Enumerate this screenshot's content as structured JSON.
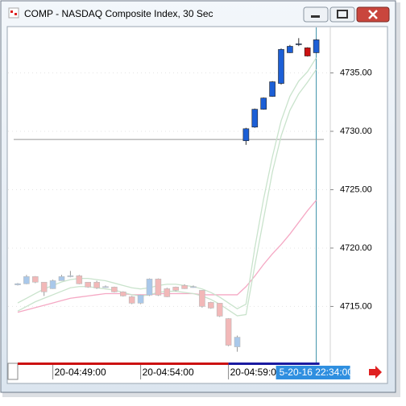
{
  "window": {
    "title": "COMP - NASDAQ Composite Index, 30 Sec"
  },
  "chart_data": {
    "type": "candlestick",
    "categories": [
      null,
      null,
      null,
      null,
      "20-04:49:00",
      null,
      null,
      null,
      null,
      null,
      null,
      null,
      null,
      null,
      "20-04:54:00",
      null,
      null,
      null,
      null,
      null,
      null,
      null,
      null,
      null,
      "20-04:59:00",
      null,
      null,
      null,
      null,
      null,
      null,
      null,
      null,
      null,
      "5-20-16 22:34:00"
    ],
    "open": [
      4716.85,
      4716.94,
      4717.56,
      4717.08,
      4716.52,
      4717.21,
      4717.55,
      4717.63,
      4717.08,
      4717.08,
      4716.62,
      4716.66,
      4716.25,
      4715.83,
      4715.28,
      4715.97,
      4717.35,
      4716.52,
      4716.66,
      4716.8,
      4716.62,
      4716.38,
      4715.35,
      4715.28,
      4713.96,
      4711.54,
      4729.19,
      4730.36,
      4731.89,
      4732.99,
      4734.1,
      4736.73,
      4737.45,
      4737.15,
      4736.73
    ],
    "high": [
      4717.0,
      4717.7,
      4717.6,
      4717.1,
      4717.3,
      4717.7,
      4718.04,
      4717.7,
      4717.1,
      4717.2,
      4716.8,
      4716.7,
      4716.3,
      4715.9,
      4716.0,
      4717.4,
      4717.4,
      4716.6,
      4716.7,
      4716.9,
      4716.8,
      4716.4,
      4715.4,
      4715.3,
      4714.0,
      4712.5,
      4730.3,
      4731.95,
      4732.9,
      4734.3,
      4737.1,
      4737.4,
      4737.98,
      4737.2,
      4737.9
    ],
    "low": [
      4716.8,
      4716.9,
      4717.0,
      4715.9,
      4716.5,
      4717.2,
      4717.5,
      4716.9,
      4716.6,
      4716.5,
      4716.6,
      4716.2,
      4715.85,
      4715.2,
      4715.2,
      4715.9,
      4715.9,
      4715.8,
      4716.3,
      4716.5,
      4716.6,
      4714.9,
      4714.8,
      4714.1,
      4711.6,
      4711.12,
      4728.84,
      4730.3,
      4731.85,
      4732.95,
      4734.0,
      4736.7,
      4737.3,
      4736.4,
      4736.7
    ],
    "close": [
      4716.95,
      4717.56,
      4717.08,
      4716.25,
      4717.21,
      4717.56,
      4717.63,
      4716.94,
      4716.66,
      4716.59,
      4716.7,
      4716.25,
      4715.9,
      4715.28,
      4715.97,
      4717.35,
      4715.97,
      4715.83,
      4716.38,
      4716.52,
      4716.7,
      4715.0,
      4714.86,
      4714.17,
      4711.68,
      4712.37,
      4730.22,
      4731.89,
      4732.85,
      4734.24,
      4737.01,
      4737.28,
      4737.49,
      4736.45,
      4737.84
    ],
    "candle_colors": [
      "#a9c8ea",
      "#a9c8ea",
      "#f2b8b8",
      "#f2b8b8",
      "#a9c8ea",
      "#a9c8ea",
      "#a9c8ea",
      "#f2b8b8",
      "#f2b8b8",
      "#f2b8b8",
      "#a9c8ea",
      "#f2b8b8",
      "#f2b8b8",
      "#f2b8b8",
      "#a9c8ea",
      "#a9c8ea",
      "#f2b8b8",
      "#f2b8b8",
      "#f2b8b8",
      "#f2b8b8",
      "#a9c8ea",
      "#f2b8b8",
      "#f2b8b8",
      "#f2b8b8",
      "#f2b8b8",
      "#a9c8ea",
      "#1c5fd6",
      "#1c5fd6",
      "#1c5fd6",
      "#1c5fd6",
      "#1c5fd6",
      "#1c5fd6",
      "#1c5fd6",
      "#cc1111",
      "#1c5fd6"
    ],
    "overlays": [
      {
        "color": "#f5a8c4",
        "values": [
          4714.5,
          4714.7,
          4714.9,
          4715.1,
          4715.3,
          4715.5,
          4715.7,
          4715.8,
          4715.9,
          4716.0,
          4716.1,
          4716.1,
          4716.1,
          4716.0,
          4716.0,
          4716.0,
          4716.1,
          4716.1,
          4716.1,
          4716.1,
          4716.1,
          4716.0,
          4716.0,
          4716.0,
          4716.0,
          4716.0,
          4716.7,
          4717.6,
          4718.6,
          4719.5,
          4720.3,
          4721.2,
          4722.2,
          4723.2,
          4724.1
        ]
      },
      {
        "color": "#c9e3cc",
        "values": [
          4715.3,
          4715.7,
          4716.1,
          4716.5,
          4716.8,
          4717.1,
          4717.3,
          4717.4,
          4717.4,
          4717.3,
          4717.2,
          4717.0,
          4716.8,
          4716.6,
          4716.5,
          4716.6,
          4716.8,
          4716.9,
          4716.9,
          4716.8,
          4716.7,
          4716.5,
          4716.2,
          4715.8,
          4715.3,
          4714.8,
          4715.2,
          4720.0,
          4724.2,
          4727.8,
          4730.9,
          4733.0,
          4734.3,
          4735.1,
          4736.3
        ]
      },
      {
        "color": "#c9e3cc",
        "values": [
          4714.6,
          4715.0,
          4715.4,
          4715.7,
          4716.0,
          4716.3,
          4716.6,
          4716.7,
          4716.7,
          4716.6,
          4716.5,
          4716.4,
          4716.2,
          4716.0,
          4715.9,
          4716.0,
          4716.2,
          4716.3,
          4716.3,
          4716.2,
          4716.1,
          4715.9,
          4715.6,
          4715.2,
          4714.7,
          4714.2,
          4714.3,
          4718.5,
          4722.5,
          4726.5,
          4729.6,
          4731.8,
          4733.2,
          4734.2,
          4735.3
        ]
      }
    ],
    "hline": {
      "value": 4729.3,
      "color": "#999999"
    },
    "highlight_last_category": true,
    "ylim": [
      4710.2,
      4738.9
    ],
    "yticks": [
      {
        "value": 4715,
        "label": "4715.00"
      },
      {
        "value": 4720,
        "label": "4720.00"
      },
      {
        "value": 4725,
        "label": "4725.00"
      },
      {
        "value": 4730,
        "label": "4730.00"
      },
      {
        "value": 4735,
        "label": "4735.00"
      }
    ],
    "grid": true
  }
}
